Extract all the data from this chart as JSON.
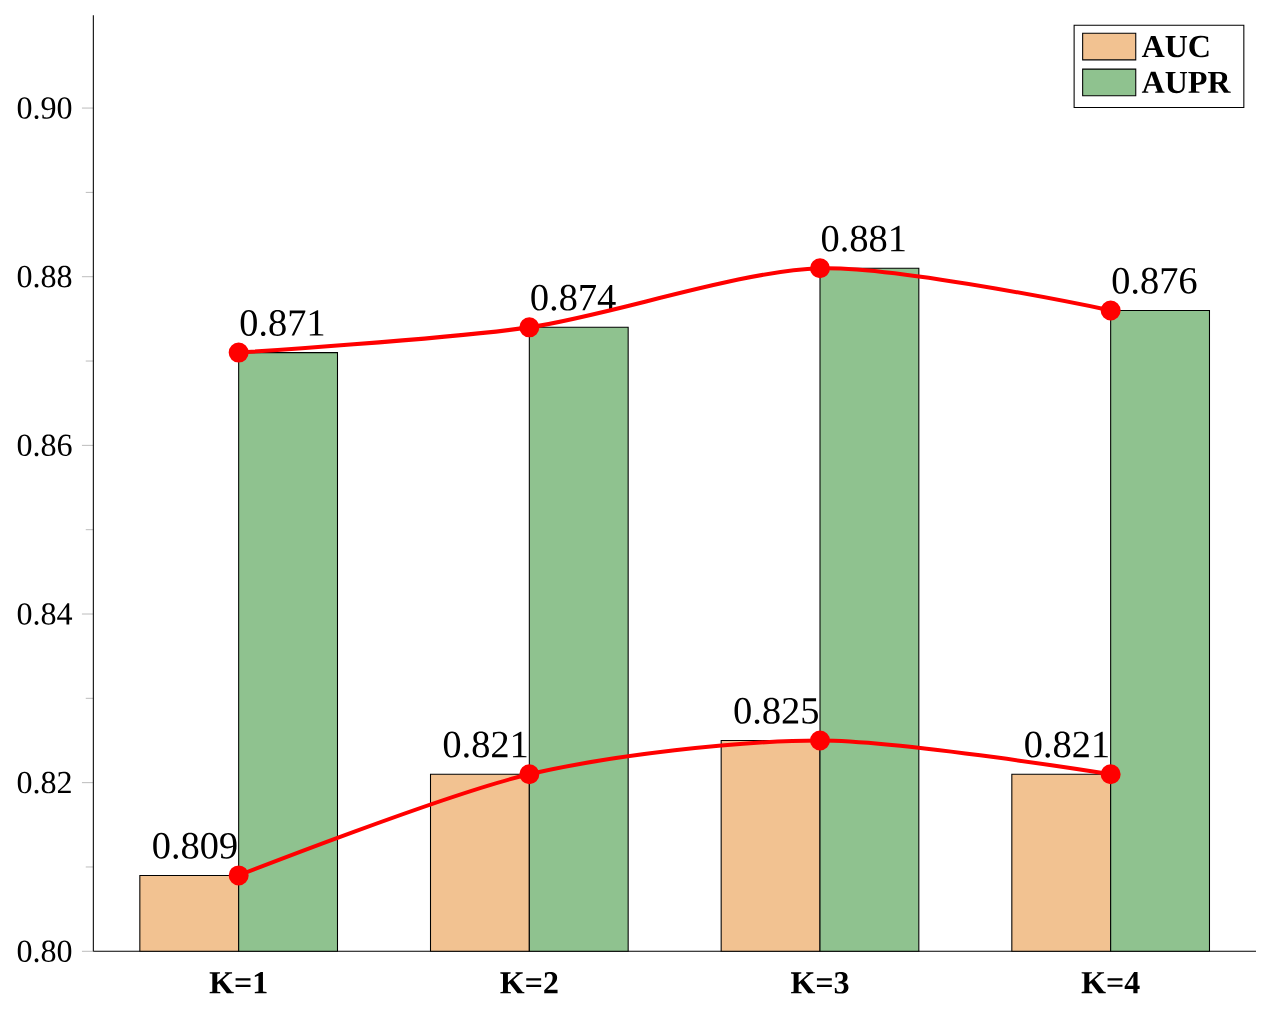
{
  "chart_data": {
    "type": "bar",
    "categories": [
      "K=1",
      "K=2",
      "K=3",
      "K=4"
    ],
    "series": [
      {
        "name": "AUC",
        "color": "#f2c291",
        "values": [
          0.809,
          0.821,
          0.825,
          0.821
        ],
        "value_labels": [
          "0.809",
          "0.821",
          "0.825",
          "0.821"
        ]
      },
      {
        "name": "AUPR",
        "color": "#8fc28f",
        "values": [
          0.871,
          0.874,
          0.881,
          0.876
        ],
        "value_labels": [
          "0.871",
          "0.874",
          "0.881",
          "0.876"
        ]
      },
      {
        "type": "line",
        "color": "#ff0000",
        "values": [
          0.809,
          0.821,
          0.825,
          0.821
        ]
      },
      {
        "type": "line",
        "color": "#ff0000",
        "values": [
          0.871,
          0.874,
          0.881,
          0.876
        ]
      }
    ],
    "ylim": [
      0.8,
      0.911
    ],
    "yticks": [
      {
        "value": 0.8,
        "label": "0.80"
      },
      {
        "value": 0.82,
        "label": "0.82"
      },
      {
        "value": 0.84,
        "label": "0.84"
      },
      {
        "value": 0.86,
        "label": "0.86"
      },
      {
        "value": 0.88,
        "label": "0.88"
      },
      {
        "value": 0.9,
        "label": "0.90"
      }
    ],
    "marker": "circle",
    "legend": "top right",
    "grid": false
  }
}
